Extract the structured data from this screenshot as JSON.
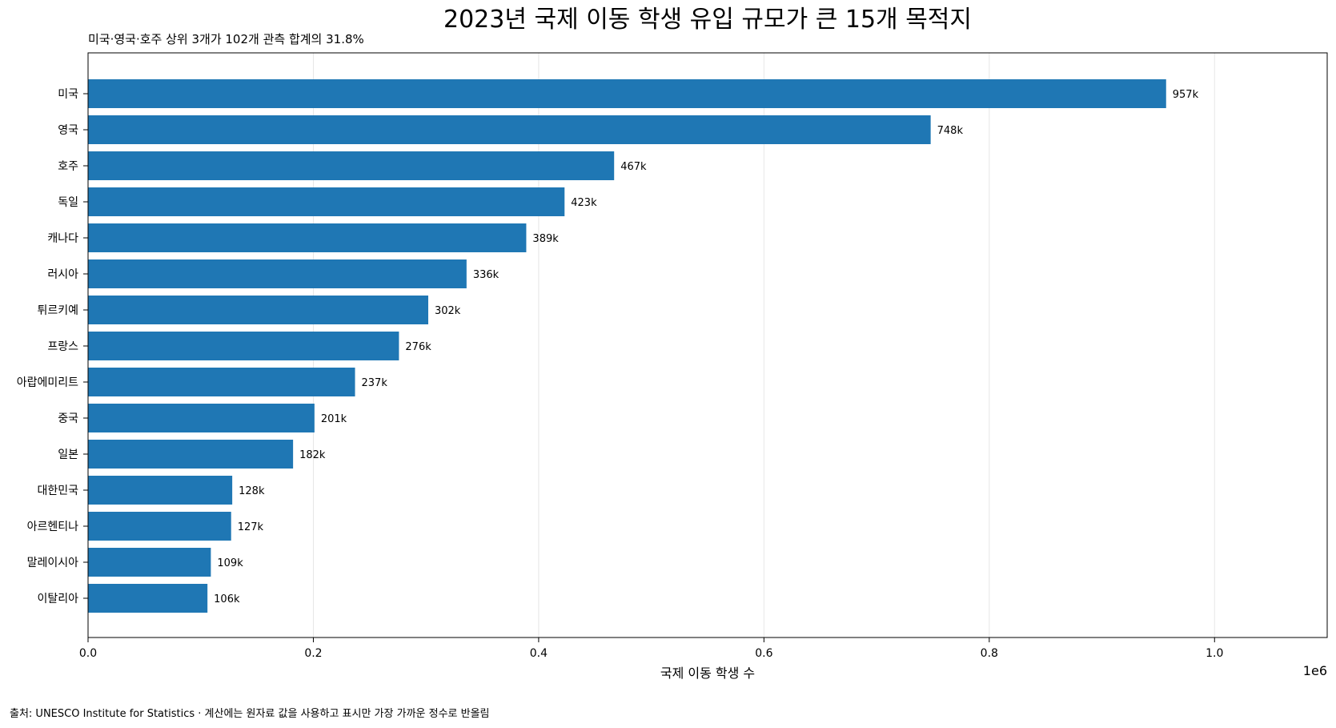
{
  "chart_data": {
    "type": "bar",
    "orientation": "horizontal",
    "title": "2023년 국제 이동 학생 유입 규모가 큰 15개 목적지",
    "subtitle": "미국·영국·호주 상위 3개가 102개 관측 합계의 31.8%",
    "xlabel": "국제 이동 학생 수",
    "ylabel": "",
    "x_offset_label": "1e6",
    "xlim": [
      0,
      1100000
    ],
    "xticks": [
      0,
      200000,
      400000,
      600000,
      800000,
      1000000
    ],
    "xtick_labels": [
      "0.0",
      "0.2",
      "0.4",
      "0.6",
      "0.8",
      "1.0"
    ],
    "grid": "x",
    "bar_color": "#1f77b4",
    "categories": [
      "미국",
      "영국",
      "호주",
      "독일",
      "캐나다",
      "러시아",
      "튀르키예",
      "프랑스",
      "아랍에미리트",
      "중국",
      "일본",
      "대한민국",
      "아르헨티나",
      "말레이시아",
      "이탈리아"
    ],
    "values": [
      957000,
      748000,
      467000,
      423000,
      389000,
      336000,
      302000,
      276000,
      237000,
      201000,
      182000,
      128000,
      127000,
      109000,
      106000
    ],
    "value_labels": [
      "957k",
      "748k",
      "467k",
      "423k",
      "389k",
      "336k",
      "302k",
      "276k",
      "237k",
      "201k",
      "182k",
      "128k",
      "127k",
      "109k",
      "106k"
    ]
  },
  "source": "출처: UNESCO Institute for Statistics · 계산에는 원자료 값을 사용하고 표시만 가장 가까운 정수로 반올림"
}
